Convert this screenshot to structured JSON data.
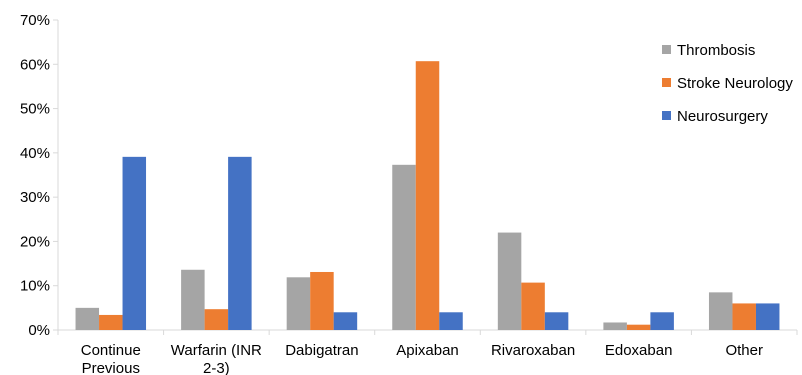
{
  "chart_data": {
    "type": "bar",
    "categories": [
      [
        "Continue",
        "Previous"
      ],
      [
        "Warfarin (INR",
        "2-3)"
      ],
      [
        "Dabigatran"
      ],
      [
        "Apixaban"
      ],
      [
        "Rivaroxaban"
      ],
      [
        "Edoxaban"
      ],
      [
        "Other"
      ]
    ],
    "series": [
      {
        "name": "Thrombosis",
        "color": "#a5a5a5",
        "values": [
          5,
          13.6,
          11.9,
          37.3,
          22,
          1.7,
          8.5
        ]
      },
      {
        "name": "Stroke Neurology",
        "color": "#ed7d31",
        "values": [
          3.4,
          4.7,
          13.1,
          60.7,
          10.7,
          1.2,
          6
        ]
      },
      {
        "name": "Neurosurgery",
        "color": "#4472c4",
        "values": [
          39.1,
          39.1,
          4,
          4,
          4,
          4,
          6
        ]
      }
    ],
    "ylim": [
      0,
      70
    ],
    "yticks": [
      "0%",
      "10%",
      "20%",
      "30%",
      "40%",
      "50%",
      "60%",
      "70%"
    ],
    "grid": false,
    "legend_position": "top-right"
  }
}
